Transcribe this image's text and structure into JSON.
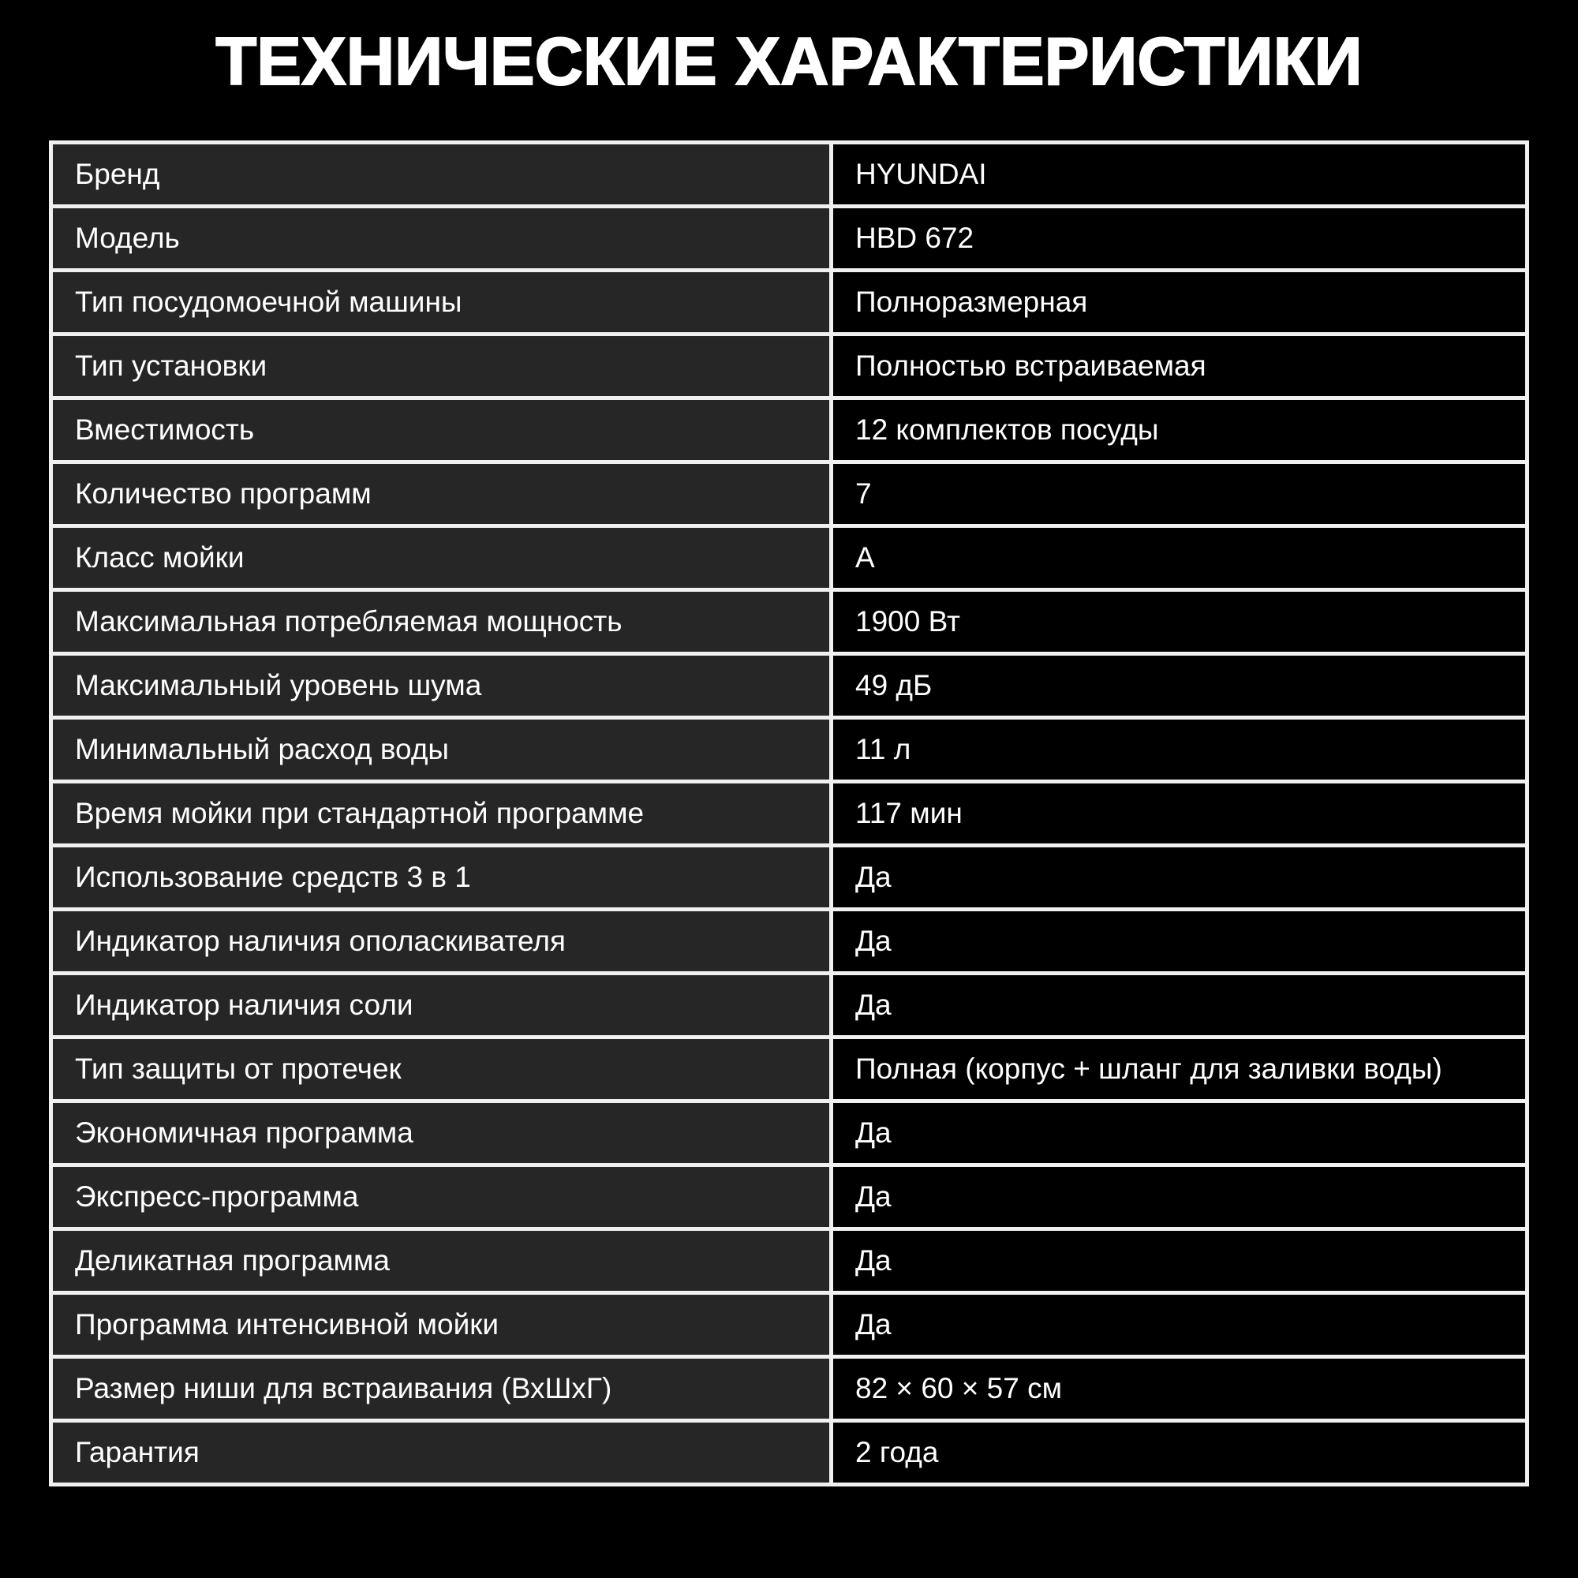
{
  "title": "ТЕХНИЧЕСКИЕ ХАРАКТЕРИСТИКИ",
  "colors": {
    "background": "#000000",
    "label_cell_bg": "#262626",
    "value_cell_bg": "#000000",
    "border": "#f0f0f0",
    "text": "#ffffff"
  },
  "table": {
    "rows": [
      {
        "label": "Бренд",
        "value": "HYUNDAI"
      },
      {
        "label": "Модель",
        "value": "HBD 672"
      },
      {
        "label": "Тип посудомоечной машины",
        "value": "Полноразмерная"
      },
      {
        "label": "Тип установки",
        "value": "Полностью встраиваемая"
      },
      {
        "label": "Вместимость",
        "value": "12 комплектов посуды"
      },
      {
        "label": "Количество программ",
        "value": "7"
      },
      {
        "label": "Класс мойки",
        "value": "А"
      },
      {
        "label": "Максимальная потребляемая мощность",
        "value": "1900 Вт"
      },
      {
        "label": "Максимальный уровень шума",
        "value": "49 дБ"
      },
      {
        "label": "Минимальный расход воды",
        "value": "11 л"
      },
      {
        "label": "Время мойки при стандартной программе",
        "value": "117 мин"
      },
      {
        "label": "Использование средств 3 в 1",
        "value": "Да"
      },
      {
        "label": "Индикатор наличия ополаскивателя",
        "value": "Да"
      },
      {
        "label": "Индикатор наличия соли",
        "value": "Да"
      },
      {
        "label": "Тип защиты от протечек",
        "value": "Полная (корпус + шланг для заливки воды)"
      },
      {
        "label": "Экономичная программа",
        "value": "Да"
      },
      {
        "label": "Экспресс-программа",
        "value": "Да"
      },
      {
        "label": "Деликатная программа",
        "value": "Да"
      },
      {
        "label": "Программа интенсивной мойки",
        "value": "Да"
      },
      {
        "label": "Размер ниши для встраивания (ВхШхГ)",
        "value": "82 × 60 × 57 см"
      },
      {
        "label": "Гарантия",
        "value": "2 года"
      }
    ]
  }
}
